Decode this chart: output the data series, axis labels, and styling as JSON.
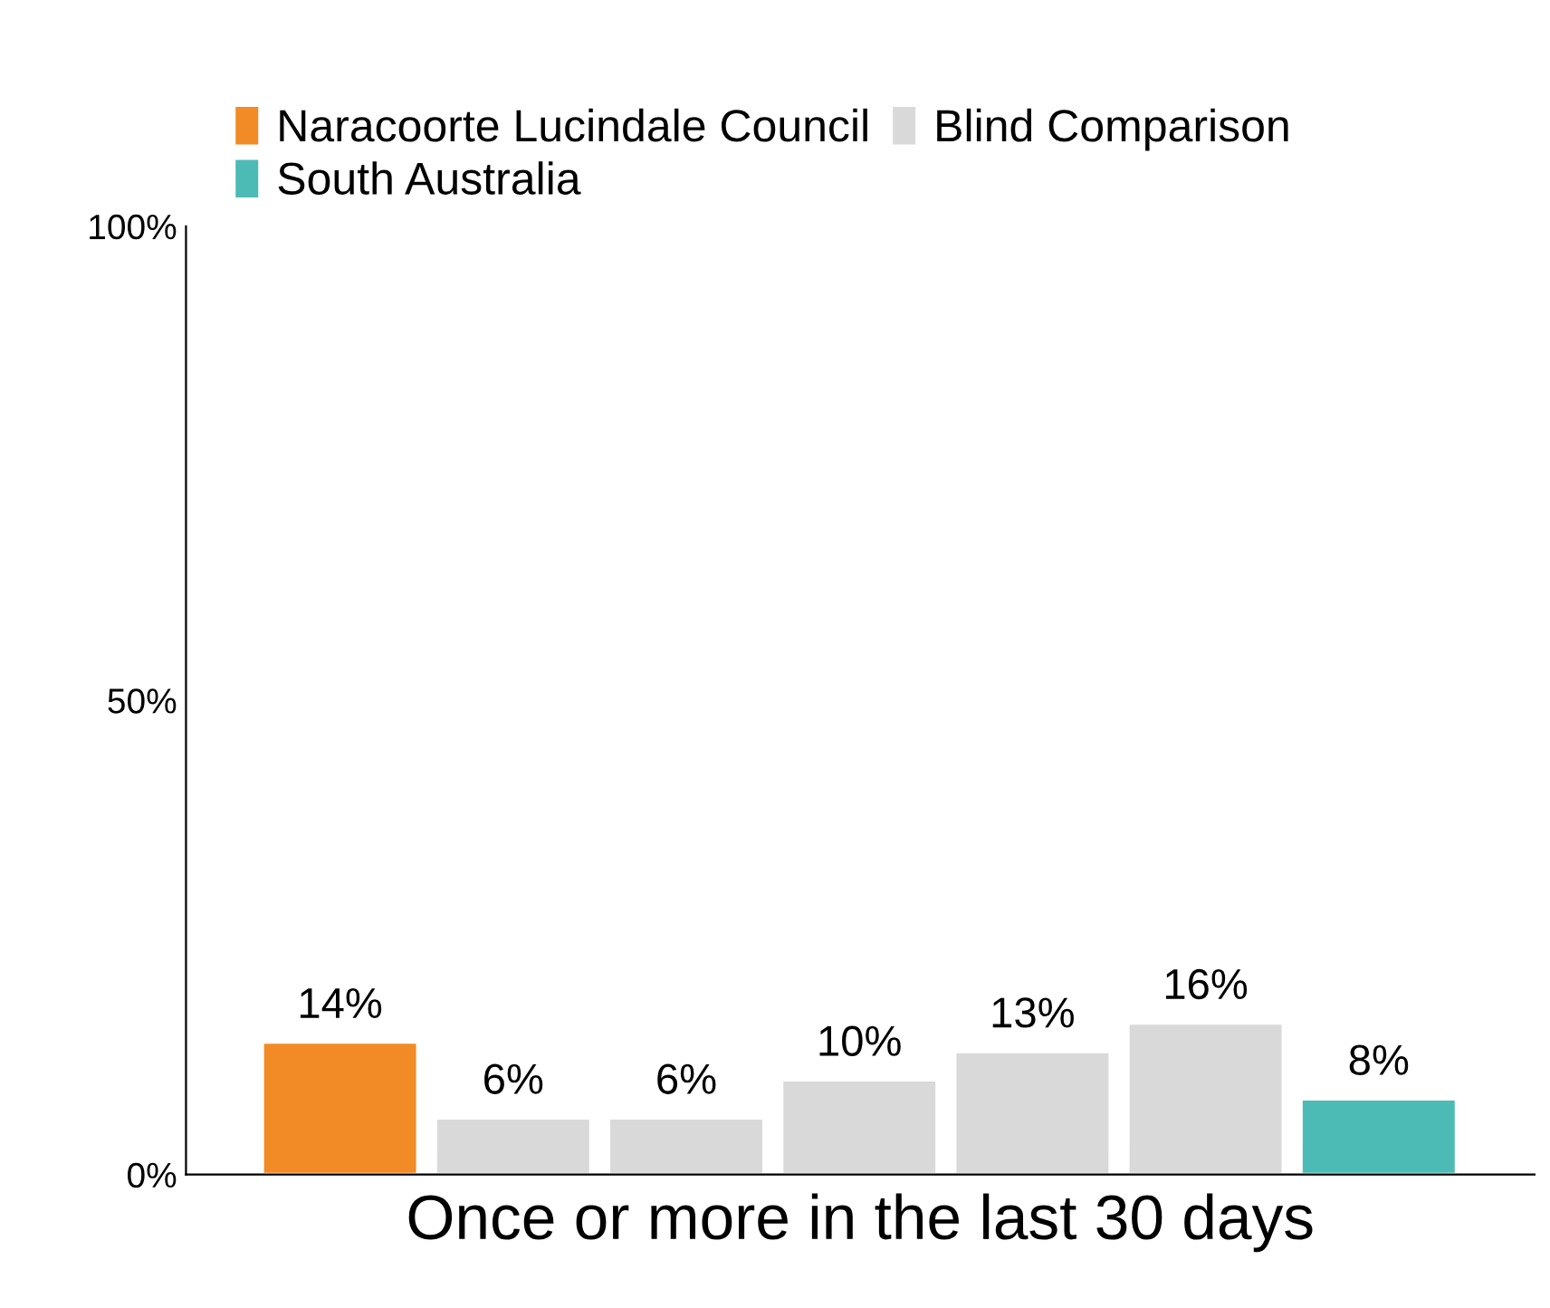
{
  "chart_data": {
    "type": "bar",
    "xlabel": "Once or more in the last 30 days",
    "categories": [
      null,
      null,
      null,
      null,
      null,
      null,
      null
    ],
    "series": [
      {
        "name": "Naracoorte Lucindale Council",
        "color": "#f28a26",
        "values": [
          14,
          null,
          null,
          null,
          null,
          null,
          null
        ]
      },
      {
        "name": "Blind Comparison",
        "color": "#d9d9d9",
        "values": [
          null,
          6,
          6,
          10,
          13,
          16,
          null
        ]
      },
      {
        "name": "South Australia",
        "color": "#4dbbb5",
        "values": [
          null,
          null,
          null,
          null,
          null,
          null,
          8
        ]
      }
    ],
    "ylim": [
      0,
      100
    ],
    "yticks": [
      {
        "value": 0,
        "label": "0%"
      },
      {
        "value": 50,
        "label": "50%"
      },
      {
        "value": 100,
        "label": "100%"
      }
    ],
    "value_labels": [
      [
        "14%",
        null,
        null,
        null,
        null,
        null,
        null
      ],
      [
        null,
        "6%",
        "6%",
        "10%",
        "13%",
        "16%",
        null
      ],
      [
        null,
        null,
        null,
        null,
        null,
        null,
        "8%"
      ]
    ],
    "grid": false,
    "legend": "top"
  }
}
